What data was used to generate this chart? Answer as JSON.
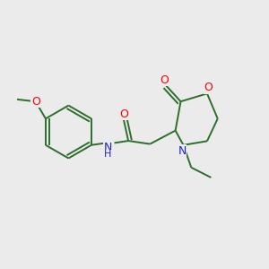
{
  "background_color": "#ebebeb",
  "bond_color": "#2d6e2d",
  "atom_colors": {
    "O": "#ff0000",
    "N": "#2222cc",
    "C": "#2d6e2d"
  },
  "line_width": 1.4,
  "figsize": [
    3.0,
    3.0
  ],
  "dpi": 100,
  "xlim": [
    0,
    10
  ],
  "ylim": [
    0,
    10
  ]
}
